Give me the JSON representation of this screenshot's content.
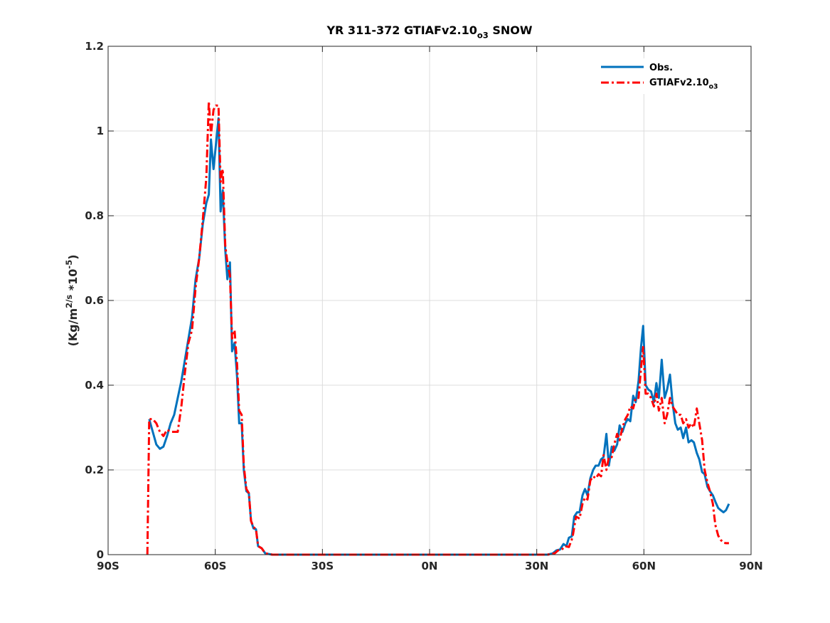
{
  "chart_data": {
    "type": "line",
    "title": "YR 311-372 GTIAFv2.10_o3 SNOW",
    "xlabel": "",
    "ylabel": "(Kg/m^2/s *10^-5)",
    "xlim": [
      -90,
      90
    ],
    "ylim": [
      0,
      1.2
    ],
    "x_ticks": [
      -90,
      -60,
      -30,
      0,
      30,
      60,
      90
    ],
    "x_tick_labels": [
      "90S",
      "60S",
      "30S",
      "0N",
      "30N",
      "60N",
      "90N"
    ],
    "y_ticks": [
      0,
      0.2,
      0.4,
      0.6,
      0.8,
      1.0,
      1.2
    ],
    "y_tick_labels": [
      "0",
      "0.2",
      "0.4",
      "0.6",
      "0.8",
      "1",
      "1.2"
    ],
    "grid": true,
    "legend_position": "top-right",
    "series": [
      {
        "name": "Obs.",
        "color": "#0072BD",
        "style": "solid",
        "points": [
          [
            -78.5,
            0.32
          ],
          [
            -77.5,
            0.29
          ],
          [
            -76.5,
            0.26
          ],
          [
            -75.5,
            0.25
          ],
          [
            -74.5,
            0.255
          ],
          [
            -73.5,
            0.28
          ],
          [
            -72.5,
            0.31
          ],
          [
            -71.5,
            0.33
          ],
          [
            -70.5,
            0.37
          ],
          [
            -69.5,
            0.41
          ],
          [
            -68.5,
            0.46
          ],
          [
            -67.5,
            0.51
          ],
          [
            -66.5,
            0.56
          ],
          [
            -65.5,
            0.65
          ],
          [
            -64.5,
            0.7
          ],
          [
            -63.5,
            0.78
          ],
          [
            -62.5,
            0.83
          ],
          [
            -61.8,
            0.85
          ],
          [
            -61.2,
            0.98
          ],
          [
            -60.5,
            0.91
          ],
          [
            -59.8,
            0.97
          ],
          [
            -59.1,
            1.03
          ],
          [
            -58.5,
            0.81
          ],
          [
            -57.9,
            0.86
          ],
          [
            -57.2,
            0.72
          ],
          [
            -56.6,
            0.65
          ],
          [
            -55.9,
            0.69
          ],
          [
            -55.3,
            0.48
          ],
          [
            -54.6,
            0.5
          ],
          [
            -53.9,
            0.42
          ],
          [
            -53.3,
            0.31
          ],
          [
            -52.6,
            0.31
          ],
          [
            -52.0,
            0.2
          ],
          [
            -51.3,
            0.15
          ],
          [
            -50.6,
            0.145
          ],
          [
            -50.0,
            0.08
          ],
          [
            -49.3,
            0.062
          ],
          [
            -48.6,
            0.06
          ],
          [
            -48.0,
            0.02
          ],
          [
            -47.0,
            0.015
          ],
          [
            -46.0,
            0.003
          ],
          [
            -44.0,
            0.0
          ],
          [
            -40.0,
            0.0
          ],
          [
            -30.0,
            0.0
          ],
          [
            -20.0,
            0.0
          ],
          [
            -10.0,
            0.0
          ],
          [
            0.0,
            0.0
          ],
          [
            10.0,
            0.0
          ],
          [
            20.0,
            0.0
          ],
          [
            30.0,
            0.0
          ],
          [
            33.0,
            0.0
          ],
          [
            34.5,
            0.003
          ],
          [
            35.5,
            0.01
          ],
          [
            36.5,
            0.012
          ],
          [
            37.5,
            0.025
          ],
          [
            38.3,
            0.02
          ],
          [
            39.0,
            0.04
          ],
          [
            39.8,
            0.043
          ],
          [
            40.5,
            0.09
          ],
          [
            41.3,
            0.1
          ],
          [
            42.0,
            0.1
          ],
          [
            42.8,
            0.14
          ],
          [
            43.5,
            0.155
          ],
          [
            44.2,
            0.14
          ],
          [
            45.0,
            0.18
          ],
          [
            45.8,
            0.2
          ],
          [
            46.5,
            0.21
          ],
          [
            47.3,
            0.21
          ],
          [
            48.0,
            0.225
          ],
          [
            48.7,
            0.23
          ],
          [
            49.5,
            0.285
          ],
          [
            50.2,
            0.21
          ],
          [
            51.0,
            0.255
          ],
          [
            51.7,
            0.245
          ],
          [
            52.5,
            0.26
          ],
          [
            53.2,
            0.305
          ],
          [
            54.0,
            0.29
          ],
          [
            54.8,
            0.31
          ],
          [
            55.5,
            0.32
          ],
          [
            56.2,
            0.315
          ],
          [
            57.0,
            0.375
          ],
          [
            57.7,
            0.36
          ],
          [
            58.5,
            0.41
          ],
          [
            59.2,
            0.49
          ],
          [
            59.8,
            0.54
          ],
          [
            60.5,
            0.4
          ],
          [
            61.2,
            0.39
          ],
          [
            62.0,
            0.385
          ],
          [
            62.8,
            0.36
          ],
          [
            63.5,
            0.405
          ],
          [
            64.2,
            0.37
          ],
          [
            65.0,
            0.46
          ],
          [
            65.8,
            0.37
          ],
          [
            66.5,
            0.39
          ],
          [
            67.3,
            0.425
          ],
          [
            68.0,
            0.36
          ],
          [
            68.8,
            0.31
          ],
          [
            69.5,
            0.295
          ],
          [
            70.3,
            0.3
          ],
          [
            71.0,
            0.275
          ],
          [
            71.8,
            0.3
          ],
          [
            72.5,
            0.265
          ],
          [
            73.3,
            0.27
          ],
          [
            74.0,
            0.265
          ],
          [
            74.8,
            0.24
          ],
          [
            75.5,
            0.225
          ],
          [
            76.3,
            0.195
          ],
          [
            77.0,
            0.19
          ],
          [
            77.8,
            0.16
          ],
          [
            78.5,
            0.15
          ],
          [
            79.3,
            0.14
          ],
          [
            80.0,
            0.125
          ],
          [
            80.8,
            0.11
          ],
          [
            81.5,
            0.105
          ],
          [
            82.3,
            0.1
          ],
          [
            83.0,
            0.105
          ],
          [
            83.8,
            0.12
          ]
        ]
      },
      {
        "name": "GTIAFv2.10_o3",
        "color": "#FF0000",
        "style": "dashdot",
        "points": [
          [
            -79.0,
            0.0
          ],
          [
            -78.5,
            0.32
          ],
          [
            -77.5,
            0.32
          ],
          [
            -76.5,
            0.31
          ],
          [
            -75.5,
            0.29
          ],
          [
            -74.5,
            0.28
          ],
          [
            -73.5,
            0.295
          ],
          [
            -72.5,
            0.29
          ],
          [
            -71.5,
            0.29
          ],
          [
            -70.5,
            0.29
          ],
          [
            -69.5,
            0.35
          ],
          [
            -68.5,
            0.43
          ],
          [
            -67.5,
            0.5
          ],
          [
            -66.5,
            0.53
          ],
          [
            -65.5,
            0.63
          ],
          [
            -64.5,
            0.7
          ],
          [
            -63.5,
            0.79
          ],
          [
            -62.5,
            0.89
          ],
          [
            -61.8,
            1.07
          ],
          [
            -61.2,
            0.99
          ],
          [
            -60.5,
            1.05
          ],
          [
            -59.8,
            1.06
          ],
          [
            -59.1,
            1.06
          ],
          [
            -58.5,
            0.88
          ],
          [
            -57.9,
            0.91
          ],
          [
            -57.2,
            0.73
          ],
          [
            -56.6,
            0.69
          ],
          [
            -55.9,
            0.66
          ],
          [
            -55.3,
            0.51
          ],
          [
            -54.6,
            0.53
          ],
          [
            -53.9,
            0.45
          ],
          [
            -53.3,
            0.34
          ],
          [
            -52.6,
            0.33
          ],
          [
            -52.0,
            0.21
          ],
          [
            -51.3,
            0.155
          ],
          [
            -50.6,
            0.145
          ],
          [
            -50.0,
            0.08
          ],
          [
            -49.3,
            0.065
          ],
          [
            -48.6,
            0.06
          ],
          [
            -48.0,
            0.02
          ],
          [
            -47.0,
            0.015
          ],
          [
            -46.0,
            0.003
          ],
          [
            -44.0,
            0.0
          ],
          [
            -40.0,
            0.0
          ],
          [
            -30.0,
            0.0
          ],
          [
            -20.0,
            0.0
          ],
          [
            -10.0,
            0.0
          ],
          [
            0.0,
            0.0
          ],
          [
            10.0,
            0.0
          ],
          [
            20.0,
            0.0
          ],
          [
            30.0,
            0.0
          ],
          [
            33.0,
            0.0
          ],
          [
            35.0,
            0.003
          ],
          [
            36.0,
            0.01
          ],
          [
            37.0,
            0.012
          ],
          [
            38.0,
            0.02
          ],
          [
            39.0,
            0.018
          ],
          [
            40.0,
            0.04
          ],
          [
            41.0,
            0.09
          ],
          [
            42.0,
            0.085
          ],
          [
            42.8,
            0.12
          ],
          [
            43.5,
            0.135
          ],
          [
            44.2,
            0.13
          ],
          [
            45.0,
            0.175
          ],
          [
            45.8,
            0.185
          ],
          [
            46.5,
            0.18
          ],
          [
            47.3,
            0.19
          ],
          [
            48.0,
            0.185
          ],
          [
            48.7,
            0.235
          ],
          [
            49.5,
            0.2
          ],
          [
            50.2,
            0.23
          ],
          [
            51.0,
            0.23
          ],
          [
            51.7,
            0.26
          ],
          [
            52.5,
            0.285
          ],
          [
            53.2,
            0.27
          ],
          [
            54.0,
            0.3
          ],
          [
            54.8,
            0.32
          ],
          [
            55.5,
            0.33
          ],
          [
            56.2,
            0.35
          ],
          [
            57.0,
            0.345
          ],
          [
            57.7,
            0.37
          ],
          [
            58.5,
            0.37
          ],
          [
            59.2,
            0.44
          ],
          [
            59.8,
            0.49
          ],
          [
            60.5,
            0.38
          ],
          [
            61.2,
            0.38
          ],
          [
            62.0,
            0.37
          ],
          [
            62.8,
            0.35
          ],
          [
            63.5,
            0.38
          ],
          [
            64.2,
            0.34
          ],
          [
            65.0,
            0.37
          ],
          [
            65.8,
            0.31
          ],
          [
            66.5,
            0.33
          ],
          [
            67.3,
            0.37
          ],
          [
            68.0,
            0.35
          ],
          [
            68.8,
            0.34
          ],
          [
            69.5,
            0.33
          ],
          [
            70.3,
            0.33
          ],
          [
            71.0,
            0.31
          ],
          [
            71.8,
            0.32
          ],
          [
            72.5,
            0.3
          ],
          [
            73.3,
            0.31
          ],
          [
            74.0,
            0.3
          ],
          [
            74.8,
            0.345
          ],
          [
            75.5,
            0.31
          ],
          [
            76.3,
            0.27
          ],
          [
            77.0,
            0.2
          ],
          [
            77.8,
            0.17
          ],
          [
            78.5,
            0.15
          ],
          [
            79.3,
            0.12
          ],
          [
            80.0,
            0.07
          ],
          [
            80.8,
            0.045
          ],
          [
            81.5,
            0.035
          ],
          [
            82.3,
            0.028
          ],
          [
            83.0,
            0.027
          ],
          [
            83.8,
            0.027
          ]
        ]
      }
    ]
  }
}
